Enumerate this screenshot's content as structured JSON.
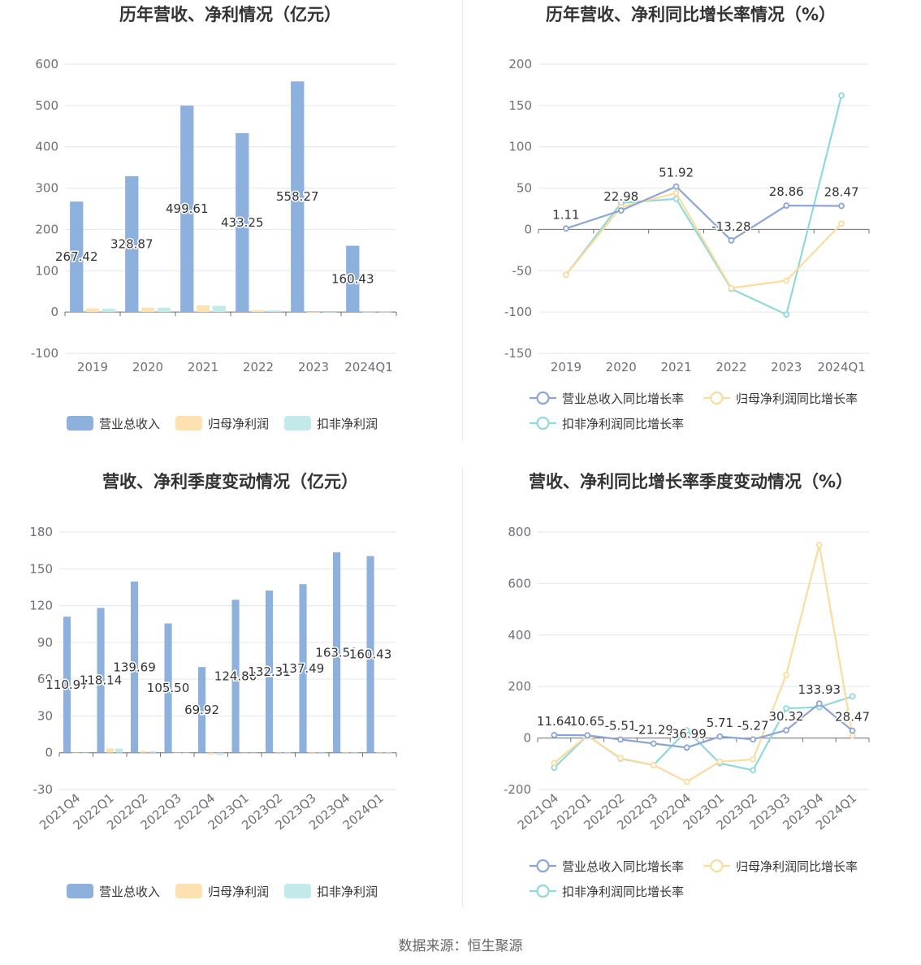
{
  "source_text": "数据来源：恒生聚源",
  "colors": {
    "revenue": "#8eb0dd",
    "net_profit": "#fde1b0",
    "deducted_profit": "#c2eaea",
    "revenue_line": "#8ba6d6",
    "net_profit_line": "#fcdb9e",
    "deducted_profit_line": "#8fd9db"
  },
  "chart_data": [
    {
      "type": "bar",
      "title": "历年营收、净利情况（亿元）",
      "categories": [
        "2019",
        "2020",
        "2021",
        "2022",
        "2023",
        "2024Q1"
      ],
      "ylim": [
        -100,
        600
      ],
      "yticks": [
        -100,
        0,
        100,
        200,
        300,
        400,
        500,
        600
      ],
      "series": [
        {
          "name": "营业总收入",
          "values": [
            267.42,
            328.87,
            499.61,
            433.25,
            558.27,
            160.43
          ],
          "labels": [
            "267.42",
            "328.87",
            "499.61",
            "433.25",
            "558.27",
            "160.43"
          ]
        },
        {
          "name": "归母净利润",
          "values": [
            8.5,
            10.5,
            16,
            4.5,
            -2,
            0.6
          ]
        },
        {
          "name": "扣非净利润",
          "values": [
            8,
            10.5,
            15,
            4,
            -1,
            0.6
          ]
        }
      ],
      "legend": "bottom"
    },
    {
      "type": "line",
      "title": "历年营收、净利同比增长率情况（%）",
      "categories": [
        "2019",
        "2020",
        "2021",
        "2022",
        "2023",
        "2024Q1"
      ],
      "ylim": [
        -150,
        200
      ],
      "yticks": [
        -150,
        -100,
        -50,
        0,
        50,
        100,
        150,
        200
      ],
      "series": [
        {
          "name": "营业总收入同比增长率",
          "values": [
            1.11,
            22.98,
            51.92,
            -13.28,
            28.86,
            28.47
          ],
          "labels": [
            "1.11",
            "22.98",
            "51.92",
            "-13.28",
            "28.86",
            "28.47"
          ]
        },
        {
          "name": "归母净利润同比增长率",
          "values": [
            -55,
            27,
            44,
            -71,
            -62,
            7
          ]
        },
        {
          "name": "扣非净利润同比增长率",
          "values": [
            -55,
            32,
            37,
            -72,
            -103,
            162
          ]
        }
      ],
      "legend": "bottom"
    },
    {
      "type": "bar",
      "title": "营收、净利季度变动情况（亿元）",
      "categories": [
        "2021Q4",
        "2022Q1",
        "2022Q2",
        "2022Q3",
        "2022Q4",
        "2023Q1",
        "2023Q2",
        "2023Q3",
        "2023Q4",
        "2024Q1"
      ],
      "ylim": [
        -30,
        180
      ],
      "yticks": [
        -30,
        0,
        30,
        60,
        90,
        120,
        150,
        180
      ],
      "series": [
        {
          "name": "营业总收入",
          "values": [
            110.97,
            118.14,
            139.69,
            105.5,
            69.92,
            124.8,
            132.31,
            137.49,
            163.51,
            160.43
          ],
          "labels": [
            "110.97",
            "118.14",
            "139.69",
            "105.50",
            "69.92",
            "124.80",
            "132.31",
            "137.49",
            "163.51",
            "160.43"
          ]
        },
        {
          "name": "归母净利润",
          "values": [
            -0.5,
            3.5,
            1.5,
            -0.5,
            -1.5,
            0,
            0.3,
            0.5,
            0.7,
            0.2
          ]
        },
        {
          "name": "扣非净利润",
          "values": [
            -0.5,
            3.5,
            1.2,
            -0.6,
            -1.8,
            0,
            0.2,
            0.4,
            0.5,
            0.2
          ]
        }
      ],
      "legend": "bottom"
    },
    {
      "type": "line",
      "title": "营收、净利同比增长率季度变动情况（%）",
      "categories": [
        "2021Q4",
        "2022Q1",
        "2022Q2",
        "2022Q3",
        "2022Q4",
        "2023Q1",
        "2023Q2",
        "2023Q3",
        "2023Q4",
        "2024Q1"
      ],
      "ylim": [
        -200,
        800
      ],
      "yticks": [
        -200,
        0,
        200,
        400,
        600,
        800
      ],
      "series": [
        {
          "name": "营业总收入同比增长率",
          "values": [
            11.64,
            10.65,
            -5.51,
            -21.29,
            -36.99,
            5.71,
            -5.27,
            30.32,
            133.93,
            28.47
          ],
          "labels": [
            "11.64",
            "10.65",
            "-5.51",
            "-21.29",
            "-36.99",
            "5.71",
            "-5.27",
            "30.32",
            "133.93",
            "28.47"
          ]
        },
        {
          "name": "归母净利润同比增长率",
          "values": [
            -97,
            10,
            -78,
            -105,
            -170,
            -92,
            -83,
            245,
            750,
            10
          ]
        },
        {
          "name": "扣非净利润同比增长率",
          "values": [
            -115,
            10,
            -80,
            -105,
            30,
            -98,
            -125,
            115,
            120,
            162
          ]
        }
      ],
      "legend": "bottom"
    }
  ]
}
